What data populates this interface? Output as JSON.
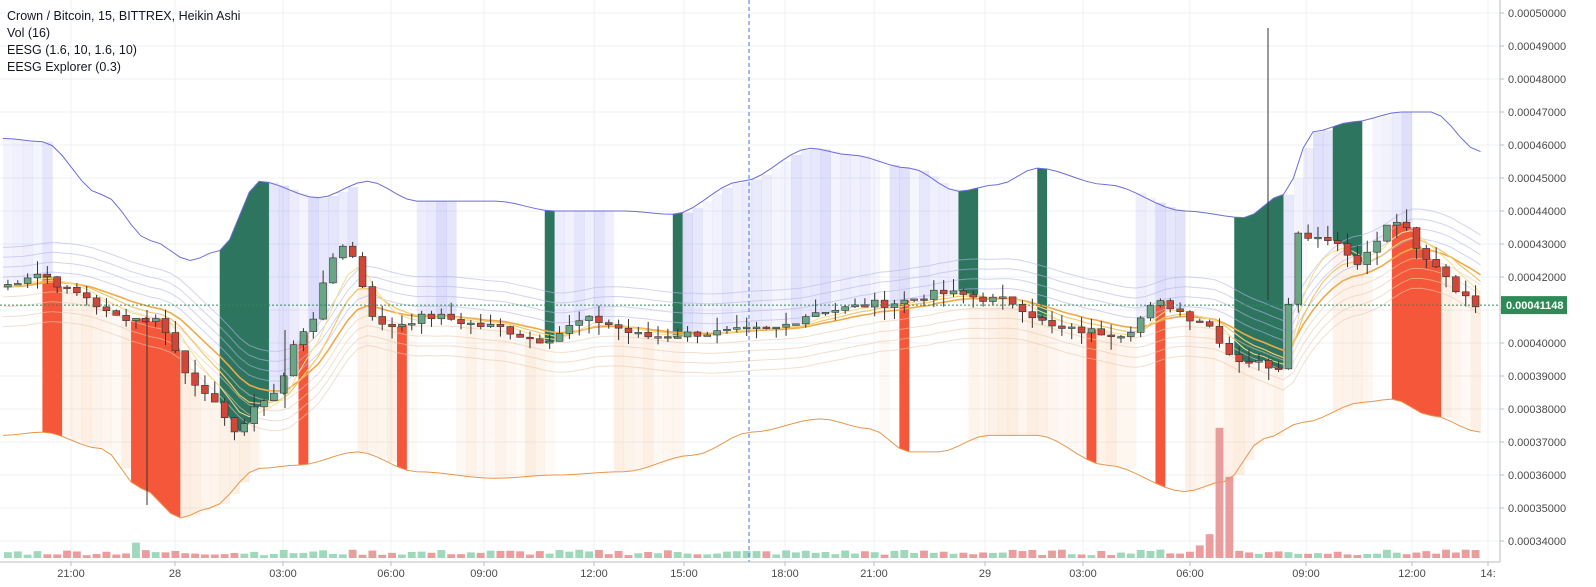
{
  "legend": {
    "symbol": "Crown / Bitcoin, 15, BITTREX, Heikin Ashi",
    "volume": "Vol (16)",
    "eesg": "EESG (1.6, 10, 1.6, 10)",
    "explorer": "EESG Explorer (0.3)"
  },
  "last_price": "0.00041148",
  "colors": {
    "up": "#6aa585",
    "down": "#d0473a",
    "upper_band": "#6d6dd8",
    "lower_band": "#e8964a",
    "green_fill": "#2e7560",
    "red_fill": "#f4573a",
    "blue_shade": "#8c8cf0",
    "orange_shade": "#f7c49a",
    "price_line": "#2e8b57",
    "vol_up": "#8fd1b0",
    "vol_down": "#e58c8c",
    "cursor_line": "#3d7ae8"
  },
  "chart_data": {
    "type": "candlestick",
    "title": "Crown / Bitcoin, 15, BITTREX, Heikin Ashi",
    "x_ticks": [
      "21:00",
      "28",
      "03:00",
      "06:00",
      "09:00",
      "12:00",
      "15:00",
      "18:00",
      "21:00",
      "29",
      "03:00",
      "06:00",
      "09:00",
      "12:00",
      "14:"
    ],
    "y_ticks": [
      "0.00050000",
      "0.00049000",
      "0.00048000",
      "0.00047000",
      "0.00046000",
      "0.00045000",
      "0.00044000",
      "0.00043000",
      "0.00042000",
      "0.00041000",
      "0.00040000",
      "0.00039000",
      "0.00038000",
      "0.00037000",
      "0.00036000",
      "0.00035000",
      "0.00034000"
    ],
    "ylim": [
      0.000335,
      0.000505
    ],
    "last_price": 0.00041148,
    "bars": 150,
    "close_anchors": [
      [
        0,
        0.000417
      ],
      [
        4,
        0.000421
      ],
      [
        8,
        0.000415
      ],
      [
        12,
        0.000408
      ],
      [
        16,
        0.000407
      ],
      [
        20,
        0.000388
      ],
      [
        24,
        0.000374
      ],
      [
        28,
        0.000385
      ],
      [
        31,
        0.000404
      ],
      [
        35,
        0.00043
      ],
      [
        39,
        0.000405
      ],
      [
        44,
        0.000408
      ],
      [
        50,
        0.000405
      ],
      [
        55,
        0.000401
      ],
      [
        60,
        0.000407
      ],
      [
        66,
        0.000402
      ],
      [
        72,
        0.000403
      ],
      [
        78,
        0.000404
      ],
      [
        84,
        0.00041
      ],
      [
        90,
        0.000412
      ],
      [
        96,
        0.000415
      ],
      [
        102,
        0.000413
      ],
      [
        108,
        0.000404
      ],
      [
        114,
        0.000403
      ],
      [
        118,
        0.000412
      ],
      [
        122,
        0.000407
      ],
      [
        126,
        0.000395
      ],
      [
        130,
        0.000393
      ],
      [
        132,
        0.000433
      ],
      [
        135,
        0.000432
      ],
      [
        138,
        0.000425
      ],
      [
        142,
        0.000437
      ],
      [
        145,
        0.000425
      ],
      [
        150,
        0.000412
      ]
    ],
    "upper_band_anchors": [
      [
        0,
        0.000462
      ],
      [
        4,
        0.000461
      ],
      [
        10,
        0.000445
      ],
      [
        15,
        0.000431
      ],
      [
        19,
        0.000425
      ],
      [
        22,
        0.000428
      ],
      [
        26,
        0.000449
      ],
      [
        32,
        0.000444
      ],
      [
        37,
        0.000449
      ],
      [
        42,
        0.000443
      ],
      [
        50,
        0.000443
      ],
      [
        56,
        0.00044
      ],
      [
        63,
        0.00044
      ],
      [
        68,
        0.000439
      ],
      [
        75,
        0.000449
      ],
      [
        82,
        0.000459
      ],
      [
        86,
        0.000457
      ],
      [
        92,
        0.000453
      ],
      [
        97,
        0.000446
      ],
      [
        101,
        0.000448
      ],
      [
        105,
        0.000453
      ],
      [
        112,
        0.000448
      ],
      [
        120,
        0.00044
      ],
      [
        126,
        0.000438
      ],
      [
        130,
        0.000445
      ],
      [
        133,
        0.000464
      ],
      [
        137,
        0.000467
      ],
      [
        142,
        0.00047
      ],
      [
        145,
        0.00047
      ],
      [
        150,
        0.000458
      ]
    ],
    "lower_band_anchors": [
      [
        0,
        0.000372
      ],
      [
        4,
        0.000373
      ],
      [
        10,
        0.000368
      ],
      [
        14,
        0.000356
      ],
      [
        18,
        0.000347
      ],
      [
        21,
        0.00035
      ],
      [
        26,
        0.000362
      ],
      [
        30,
        0.000363
      ],
      [
        36,
        0.000367
      ],
      [
        42,
        0.000361
      ],
      [
        50,
        0.000359
      ],
      [
        56,
        0.00036
      ],
      [
        63,
        0.000361
      ],
      [
        70,
        0.000366
      ],
      [
        76,
        0.000373
      ],
      [
        83,
        0.000377
      ],
      [
        88,
        0.000374
      ],
      [
        92,
        0.000367
      ],
      [
        95,
        0.000367
      ],
      [
        100,
        0.000372
      ],
      [
        105,
        0.000372
      ],
      [
        112,
        0.000363
      ],
      [
        120,
        0.000355
      ],
      [
        124,
        0.000358
      ],
      [
        128,
        0.000371
      ],
      [
        132,
        0.000376
      ],
      [
        138,
        0.000382
      ],
      [
        141,
        0.000383
      ],
      [
        145,
        0.000378
      ],
      [
        150,
        0.000373
      ]
    ],
    "volume_peaks": [
      [
        13,
        0.11
      ],
      [
        121,
        0.09
      ],
      [
        122,
        0.17
      ],
      [
        123,
        0.93
      ],
      [
        124,
        0.58
      ],
      [
        111,
        0.05
      ],
      [
        117,
        0.06
      ]
    ]
  }
}
